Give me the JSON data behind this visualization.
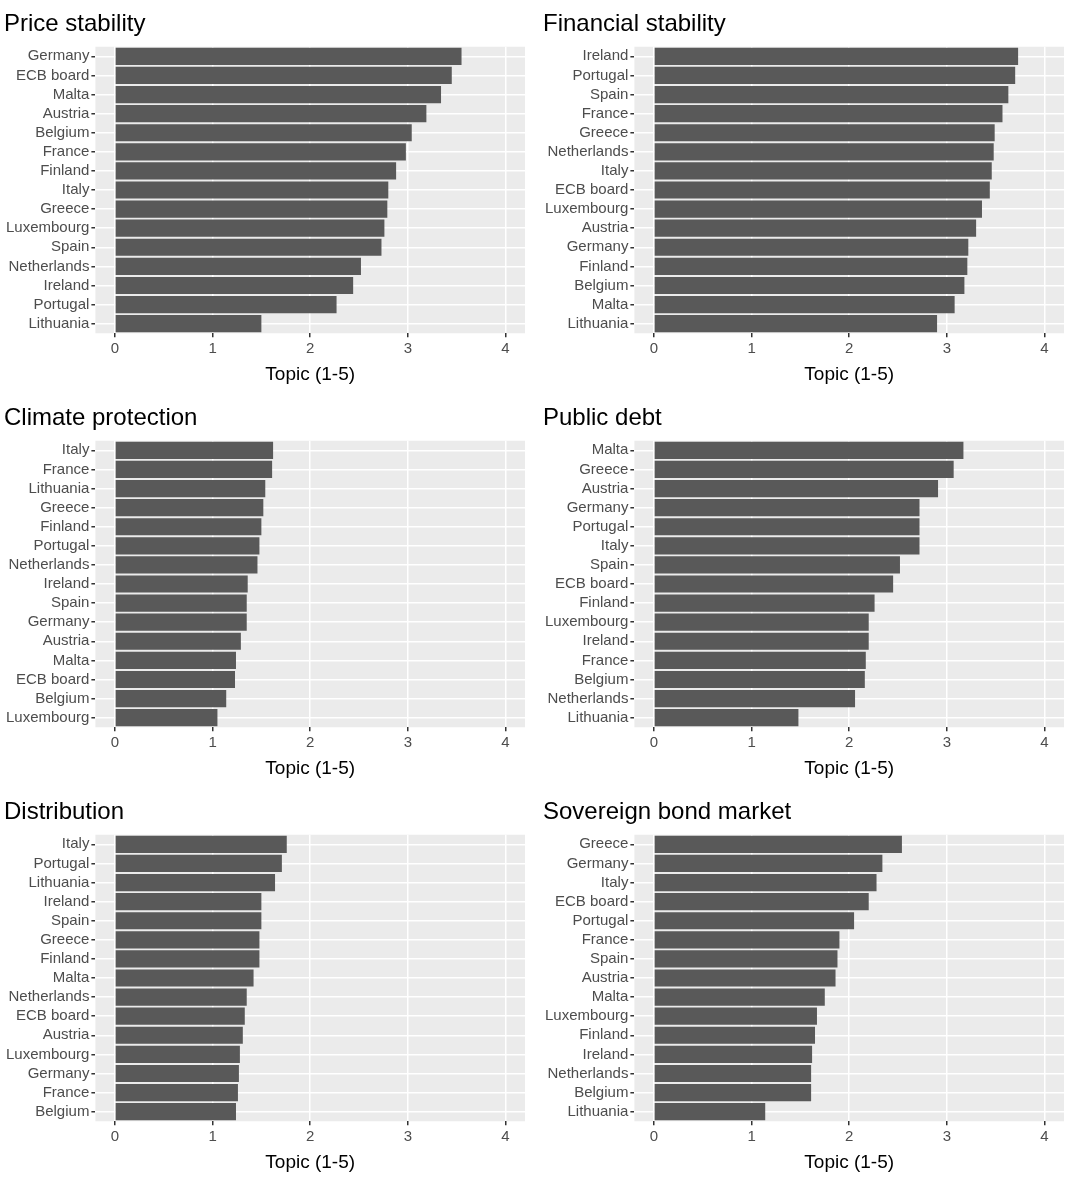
{
  "chart_data": [
    {
      "type": "bar",
      "orientation": "horizontal",
      "title": "Price stability",
      "xlabel": "Topic (1-5)",
      "color": "#595959",
      "grid": true,
      "xlim": [
        -0.2,
        4.2
      ],
      "xticks": [
        0,
        1,
        2,
        3,
        4
      ],
      "categories": [
        "Germany",
        "ECB board",
        "Malta",
        "Austria",
        "Belgium",
        "France",
        "Finland",
        "Italy",
        "Greece",
        "Luxembourg",
        "Spain",
        "Netherlands",
        "Ireland",
        "Portugal",
        "Lithuania"
      ],
      "values": [
        3.55,
        3.45,
        3.34,
        3.19,
        3.04,
        2.98,
        2.88,
        2.8,
        2.79,
        2.76,
        2.73,
        2.52,
        2.44,
        2.27,
        1.5
      ]
    },
    {
      "type": "bar",
      "orientation": "horizontal",
      "title": "Financial stability",
      "xlabel": "Topic (1-5)",
      "color": "#595959",
      "grid": true,
      "xlim": [
        -0.2,
        4.2
      ],
      "xticks": [
        0,
        1,
        2,
        3,
        4
      ],
      "categories": [
        "Ireland",
        "Portugal",
        "Spain",
        "France",
        "Greece",
        "Netherlands",
        "Italy",
        "ECB board",
        "Luxembourg",
        "Austria",
        "Germany",
        "Finland",
        "Belgium",
        "Malta",
        "Lithuania"
      ],
      "values": [
        3.73,
        3.7,
        3.63,
        3.57,
        3.49,
        3.48,
        3.46,
        3.44,
        3.36,
        3.3,
        3.22,
        3.21,
        3.18,
        3.08,
        2.9
      ]
    },
    {
      "type": "bar",
      "orientation": "horizontal",
      "title": "Climate protection",
      "xlabel": "Topic (1-5)",
      "color": "#595959",
      "grid": true,
      "xlim": [
        -0.2,
        4.2
      ],
      "xticks": [
        0,
        1,
        2,
        3,
        4
      ],
      "categories": [
        "Italy",
        "France",
        "Lithuania",
        "Greece",
        "Finland",
        "Portugal",
        "Netherlands",
        "Ireland",
        "Spain",
        "Germany",
        "Austria",
        "Malta",
        "ECB board",
        "Belgium",
        "Luxembourg"
      ],
      "values": [
        1.62,
        1.61,
        1.54,
        1.52,
        1.5,
        1.48,
        1.46,
        1.36,
        1.35,
        1.35,
        1.29,
        1.24,
        1.23,
        1.14,
        1.05
      ]
    },
    {
      "type": "bar",
      "orientation": "horizontal",
      "title": "Public debt",
      "xlabel": "Topic (1-5)",
      "color": "#595959",
      "grid": true,
      "xlim": [
        -0.2,
        4.2
      ],
      "xticks": [
        0,
        1,
        2,
        3,
        4
      ],
      "categories": [
        "Malta",
        "Greece",
        "Austria",
        "Germany",
        "Portugal",
        "Italy",
        "Spain",
        "ECB board",
        "Finland",
        "Luxembourg",
        "Ireland",
        "France",
        "Belgium",
        "Netherlands",
        "Lithuania"
      ],
      "values": [
        3.17,
        3.07,
        2.91,
        2.72,
        2.72,
        2.72,
        2.52,
        2.45,
        2.26,
        2.2,
        2.2,
        2.17,
        2.16,
        2.06,
        1.48
      ]
    },
    {
      "type": "bar",
      "orientation": "horizontal",
      "title": "Distribution",
      "xlabel": "Topic (1-5)",
      "color": "#595959",
      "grid": true,
      "xlim": [
        -0.2,
        4.2
      ],
      "xticks": [
        0,
        1,
        2,
        3,
        4
      ],
      "categories": [
        "Italy",
        "Portugal",
        "Lithuania",
        "Ireland",
        "Spain",
        "Greece",
        "Finland",
        "Malta",
        "Netherlands",
        "ECB board",
        "Austria",
        "Luxembourg",
        "Germany",
        "France",
        "Belgium"
      ],
      "values": [
        1.76,
        1.71,
        1.64,
        1.5,
        1.5,
        1.48,
        1.48,
        1.42,
        1.35,
        1.33,
        1.31,
        1.28,
        1.27,
        1.26,
        1.24
      ]
    },
    {
      "type": "bar",
      "orientation": "horizontal",
      "title": "Sovereign bond market",
      "xlabel": "Topic (1-5)",
      "color": "#595959",
      "grid": true,
      "xlim": [
        -0.2,
        4.2
      ],
      "xticks": [
        0,
        1,
        2,
        3,
        4
      ],
      "categories": [
        "Greece",
        "Germany",
        "Italy",
        "ECB board",
        "Portugal",
        "France",
        "Spain",
        "Austria",
        "Malta",
        "Luxembourg",
        "Finland",
        "Ireland",
        "Netherlands",
        "Belgium",
        "Lithuania"
      ],
      "values": [
        2.54,
        2.34,
        2.28,
        2.2,
        2.05,
        1.9,
        1.88,
        1.86,
        1.75,
        1.67,
        1.65,
        1.62,
        1.61,
        1.61,
        1.14
      ]
    }
  ]
}
